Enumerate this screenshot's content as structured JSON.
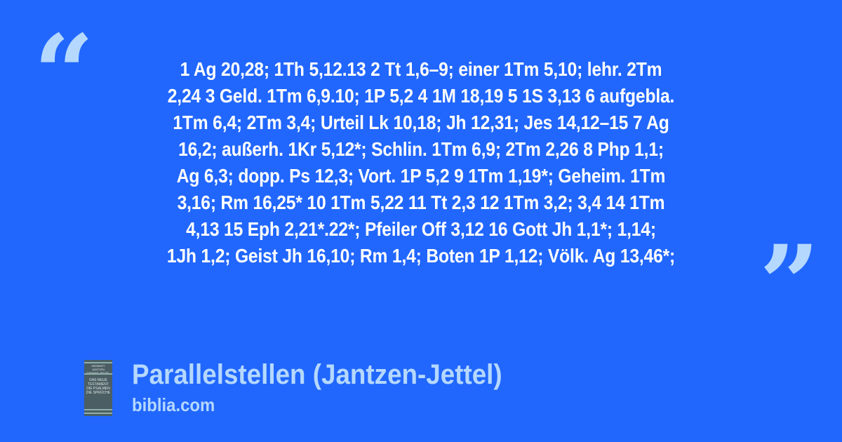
{
  "colors": {
    "background": "#2167fe",
    "quote_marks": "#b5d8ff",
    "text": "#ffffff",
    "footer_text": "#b5d8ff"
  },
  "quote": {
    "lines": [
      "1 Ag 20,28; 1Th 5,12.13 2 Tt 1,6–9; einer 1Tm 5,10; lehr. 2Tm",
      "2,24 3 Geld. 1Tm 6,9.10; 1P 5,2 4 1M 18,19 5 1S 3,13 6 aufgebla.",
      "1Tm 6,4; 2Tm 3,4; Urteil Lk 10,18; Jh 12,31; Jes 14,12–15 7 Ag",
      "16,2; außerh. 1Kr 5,12*; Schlin. 1Tm 6,9; 2Tm 2,26 8 Php 1,1;",
      "Ag 6,3; dopp. Ps 12,3; Vort. 1P 5,2 9 1Tm 1,19*; Geheim. 1Tm",
      "3,16; Rm 16,25* 10 1Tm 5,22 11 Tt 2,3 12 1Tm 3,2; 3,4 14 1Tm",
      "4,13 15 Eph 2,21*.22*; Pfeiler Off 3,12 16 Gott Jh 1,1*; 1,14;",
      "1Jh 1,2; Geist Jh 16,10; Rm 1,4; Boten 1P 1,12; Völk. Ag 13,46*;"
    ]
  },
  "footer": {
    "book_cover": {
      "authors": "HERBERT JANTZEN THOMAS JETTEL",
      "title": "DAS NEUE TESTAMENT DIE PSALMEN DIE SPRÜCHE"
    },
    "title": "Parallelstellen (Jantzen-Jettel)",
    "site": "biblia.com"
  }
}
